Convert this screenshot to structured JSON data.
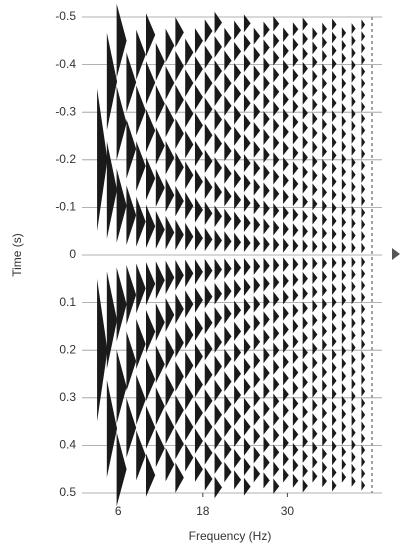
{
  "chart_data": {
    "type": "wiggle",
    "x_label": "Frequency (Hz)",
    "y_label": "Time (s)",
    "xlim": [
      2,
      42
    ],
    "xticks": [
      6,
      18,
      30
    ],
    "ylim": [
      -0.5,
      0.5
    ],
    "y_inverted": true,
    "yticks": [
      -0.5,
      -0.4,
      -0.3,
      -0.2,
      -0.1,
      0,
      0.1,
      0.2,
      0.3,
      0.4,
      0.5
    ],
    "grid": true,
    "color": "#1a1a1a"
  }
}
